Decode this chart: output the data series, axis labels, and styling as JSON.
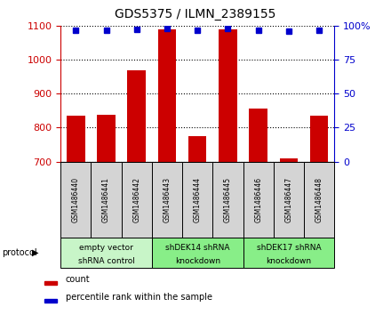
{
  "title": "GDS5375 / ILMN_2389155",
  "samples": [
    "GSM1486440",
    "GSM1486441",
    "GSM1486442",
    "GSM1486443",
    "GSM1486444",
    "GSM1486445",
    "GSM1486446",
    "GSM1486447",
    "GSM1486448"
  ],
  "counts": [
    835,
    838,
    970,
    1090,
    775,
    1090,
    855,
    710,
    836
  ],
  "percentiles": [
    97,
    97,
    97.5,
    98,
    97,
    98,
    97,
    96,
    97
  ],
  "ylim_left": [
    700,
    1100
  ],
  "ylim_right": [
    0,
    100
  ],
  "yticks_left": [
    700,
    800,
    900,
    1000,
    1100
  ],
  "yticks_right": [
    0,
    25,
    50,
    75,
    100
  ],
  "groups": [
    {
      "label": "empty vector\nshRNA control",
      "start": 0,
      "end": 3,
      "color": "#c8f5c8"
    },
    {
      "label": "shDEK14 shRNA\nknockdown",
      "start": 3,
      "end": 6,
      "color": "#88ee88"
    },
    {
      "label": "shDEK17 shRNA\nknockdown",
      "start": 6,
      "end": 9,
      "color": "#88ee88"
    }
  ],
  "bar_color": "#cc0000",
  "dot_color": "#0000cc",
  "bar_width": 0.6,
  "protocol_label": "protocol"
}
